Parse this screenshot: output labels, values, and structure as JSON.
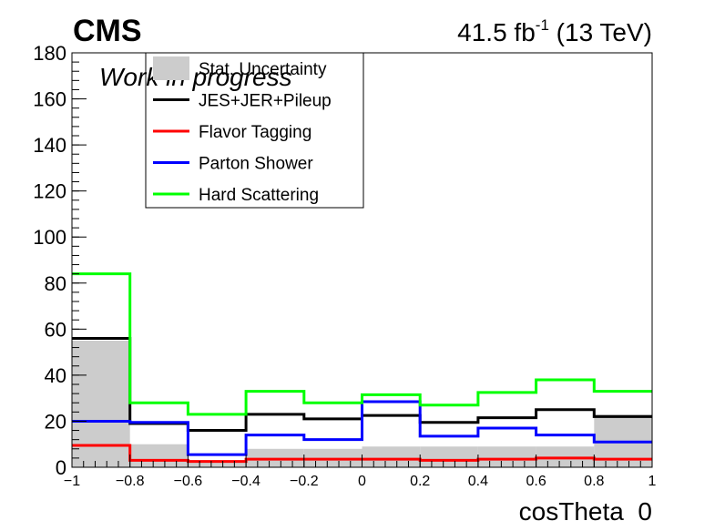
{
  "header": {
    "experiment": "CMS",
    "lumi_prefix": "41.5 fb",
    "lumi_sup": "-1",
    "lumi_suffix": " (13 TeV)",
    "status": "Work in progress"
  },
  "chart_data": {
    "type": "step",
    "xlabel": "cosTheta_0",
    "ylabel": "",
    "xlim": [
      -1,
      1
    ],
    "ylim": [
      0,
      180
    ],
    "bin_edges": [
      -1,
      -0.8,
      -0.6,
      -0.4,
      -0.2,
      0,
      0.2,
      0.4,
      0.6,
      0.8,
      1
    ],
    "x_ticks": [
      -1,
      -0.8,
      -0.6,
      -0.4,
      -0.2,
      0,
      0.2,
      0.4,
      0.6,
      0.8,
      1
    ],
    "x_tick_labels": [
      "−1",
      "−0.8",
      "−0.6",
      "−0.4",
      "−0.2",
      "0",
      "0.2",
      "0.4",
      "0.6",
      "0.8",
      "1"
    ],
    "y_ticks": [
      0,
      20,
      40,
      60,
      80,
      100,
      120,
      140,
      160,
      180
    ],
    "y_tick_labels": [
      "0",
      "20",
      "40",
      "60",
      "80",
      "100",
      "120",
      "140",
      "160",
      "180"
    ],
    "legend_position": "top-left",
    "band": {
      "name": "Stat. Uncertainty",
      "color": "#cccccc",
      "values": [
        55,
        10,
        3,
        8,
        8,
        9,
        9,
        9,
        9,
        23
      ]
    },
    "series": [
      {
        "name": "JES+JER+Pileup",
        "color": "#000000",
        "values": [
          56,
          19,
          16,
          23,
          21,
          22.5,
          19.5,
          21.5,
          25,
          22
        ]
      },
      {
        "name": "Flavor Tagging",
        "color": "#ff0000",
        "values": [
          9.5,
          3,
          2.5,
          3.5,
          3.5,
          3.5,
          3,
          3.5,
          4,
          3.5
        ]
      },
      {
        "name": "Parton Shower",
        "color": "#0000ff",
        "values": [
          20,
          19.5,
          5.5,
          14,
          12,
          28.5,
          13.5,
          17,
          14,
          11
        ]
      },
      {
        "name": "Hard Scattering",
        "color": "#00ff00",
        "values": [
          84,
          28,
          23,
          33,
          28,
          31.5,
          27,
          32.5,
          38,
          33
        ]
      }
    ]
  }
}
